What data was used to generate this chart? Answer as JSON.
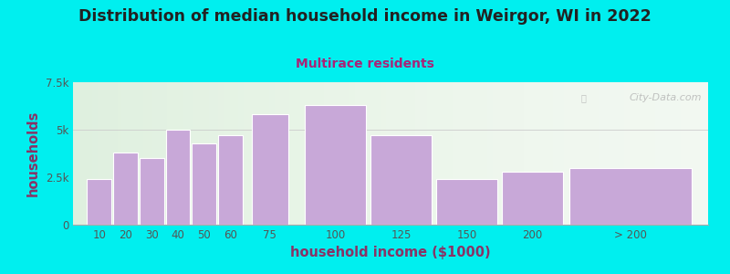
{
  "title": "Distribution of median household income in Weirgor, WI in 2022",
  "subtitle": "Multirace residents",
  "xlabel": "household income ($1000)",
  "ylabel": "households",
  "bar_labels": [
    "10",
    "20",
    "30",
    "40",
    "50",
    "60",
    "75",
    "100",
    "125",
    "150",
    "200",
    "> 200"
  ],
  "bar_values": [
    2400,
    3800,
    3500,
    5000,
    4300,
    4700,
    5800,
    6300,
    4700,
    2400,
    2800,
    3000
  ],
  "bar_color": "#C8A8D8",
  "bar_edge_color": "#FFFFFF",
  "background_color": "#00EFEF",
  "plot_bg_color": "#F0F8F0",
  "title_color": "#222222",
  "subtitle_color": "#AA2277",
  "axis_label_color": "#883366",
  "tick_color": "#555555",
  "ylim": [
    0,
    7500
  ],
  "yticks": [
    0,
    2500,
    5000,
    7500
  ],
  "ytick_labels": [
    "0",
    "2.5k",
    "5k",
    "7.5k"
  ],
  "watermark": "City-Data.com",
  "bar_widths": [
    10,
    10,
    10,
    10,
    10,
    10,
    15,
    25,
    25,
    25,
    25,
    50
  ],
  "bar_lefts": [
    5,
    15,
    25,
    35,
    45,
    55,
    67.5,
    87.5,
    112.5,
    137.5,
    162.5,
    187.5
  ]
}
